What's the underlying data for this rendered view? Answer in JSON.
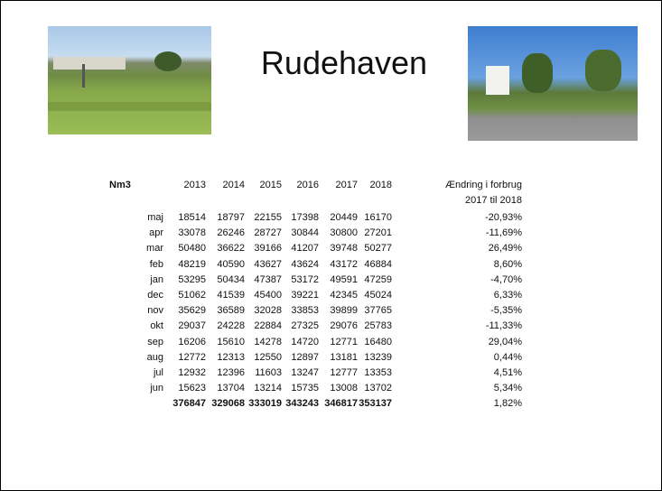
{
  "title": "Rudehaven",
  "table": {
    "corner": "Nm3",
    "years": [
      2013,
      2014,
      2015,
      2016,
      2017,
      2018
    ],
    "change_header": [
      "Ændring i forbrug",
      "2017 til 2018"
    ],
    "rows": [
      {
        "month": "maj",
        "values": [
          18514,
          18797,
          22155,
          17398,
          20449,
          16170
        ],
        "change": "-20,93%"
      },
      {
        "month": "apr",
        "values": [
          33078,
          26246,
          28727,
          30844,
          30800,
          27201
        ],
        "change": "-11,69%"
      },
      {
        "month": "mar",
        "values": [
          50480,
          36622,
          39166,
          41207,
          39748,
          50277
        ],
        "change": "26,49%"
      },
      {
        "month": "feb",
        "values": [
          48219,
          40590,
          43627,
          43624,
          43172,
          46884
        ],
        "change": "8,60%"
      },
      {
        "month": "jan",
        "values": [
          53295,
          50434,
          47387,
          53172,
          49591,
          47259
        ],
        "change": "-4,70%"
      },
      {
        "month": "dec",
        "values": [
          51062,
          41539,
          45400,
          39221,
          42345,
          45024
        ],
        "change": "6,33%"
      },
      {
        "month": "nov",
        "values": [
          35629,
          36589,
          32028,
          33853,
          39899,
          37765
        ],
        "change": "-5,35%"
      },
      {
        "month": "okt",
        "values": [
          29037,
          24228,
          22884,
          27325,
          29076,
          25783
        ],
        "change": "-11,33%"
      },
      {
        "month": "sep",
        "values": [
          16206,
          15610,
          14278,
          14720,
          12771,
          16480
        ],
        "change": "29,04%"
      },
      {
        "month": "aug",
        "values": [
          12772,
          12313,
          12550,
          12897,
          13181,
          13239
        ],
        "change": "0,44%"
      },
      {
        "month": "jul",
        "values": [
          12932,
          12396,
          11603,
          13247,
          12777,
          13353
        ],
        "change": "4,51%"
      },
      {
        "month": "jun",
        "values": [
          15623,
          13704,
          13214,
          15735,
          13008,
          13702
        ],
        "change": "5,34%"
      }
    ],
    "total": {
      "values": [
        376847,
        329068,
        333019,
        343243,
        346817,
        353137
      ],
      "change": "1,82%"
    }
  }
}
